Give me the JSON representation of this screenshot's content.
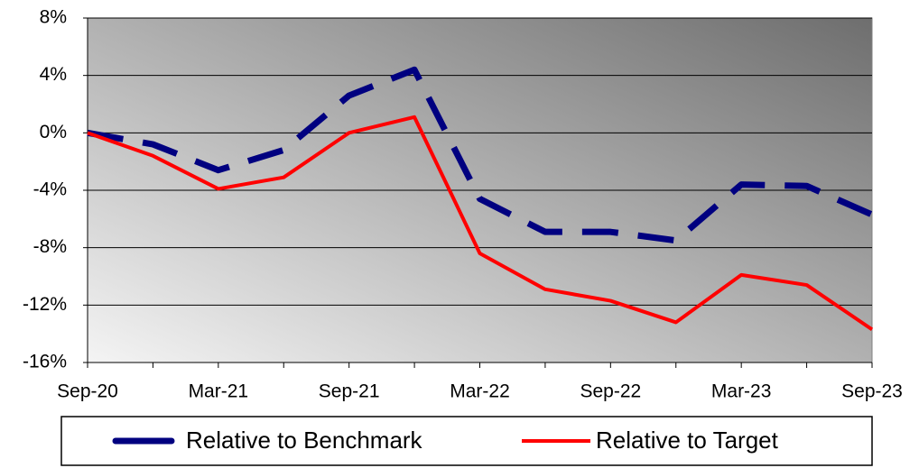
{
  "chart_data": {
    "type": "line",
    "categories": [
      "Sep-20",
      null,
      "Mar-21",
      null,
      "Sep-21",
      null,
      "Mar-22",
      null,
      "Sep-22",
      null,
      "Mar-23",
      null,
      "Sep-23"
    ],
    "series": [
      {
        "name": "Relative to Benchmark",
        "color": "#000080",
        "dash": true,
        "values": [
          0,
          -0.8,
          -2.6,
          -1.2,
          2.6,
          4.4,
          -4.6,
          -6.9,
          -6.9,
          -7.5,
          -3.6,
          -3.7,
          -5.7
        ]
      },
      {
        "name": "Relative to Target",
        "color": "#ff0000",
        "dash": false,
        "values": [
          0,
          -1.6,
          -3.9,
          -3.1,
          0,
          1.1,
          -8.4,
          -10.9,
          -11.7,
          -13.2,
          -9.9,
          -10.6,
          -13.7
        ]
      }
    ],
    "ylim": [
      -16,
      8
    ],
    "yticks": [
      {
        "value": -16,
        "label": "-16%"
      },
      {
        "value": -12,
        "label": "-12%"
      },
      {
        "value": -8,
        "label": "-8%"
      },
      {
        "value": -4,
        "label": "-4%"
      },
      {
        "value": 0,
        "label": "0%"
      },
      {
        "value": 4,
        "label": "4%"
      },
      {
        "value": 8,
        "label": "8%"
      }
    ],
    "grid": true,
    "legend": "bottom"
  }
}
